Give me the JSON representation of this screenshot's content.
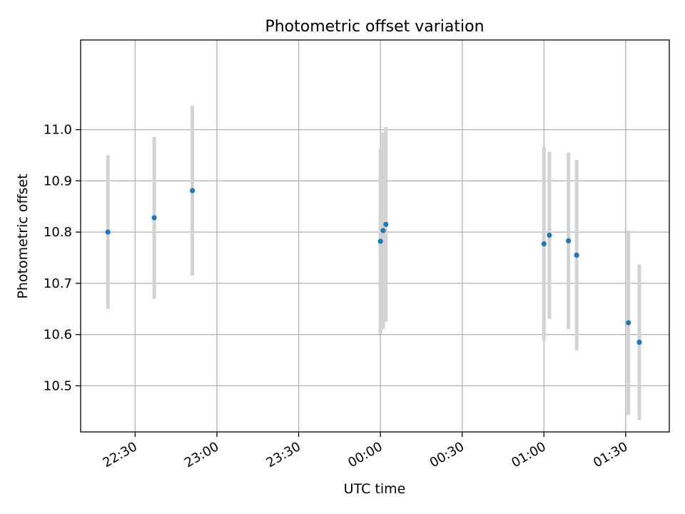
{
  "chart_data": {
    "type": "scatter",
    "title": "Photometric offset variation",
    "xlabel": "UTC time",
    "ylabel": "Photometric offset",
    "x_ticks": [
      "22:30",
      "23:00",
      "23:30",
      "00:00",
      "00:30",
      "01:00",
      "01:30"
    ],
    "y_ticks": [
      "10.5",
      "10.6",
      "10.7",
      "10.8",
      "10.9",
      "11.0"
    ],
    "xlim": [
      "22:10",
      "01:46"
    ],
    "ylim": [
      10.41,
      11.175
    ],
    "grid": true,
    "colors": {
      "point": "#1f77b4",
      "errorbar": "#d3d3d3",
      "grid": "#b0b0b0"
    },
    "points": [
      {
        "time": "22:20",
        "y": 10.8,
        "err": 0.15
      },
      {
        "time": "22:37",
        "y": 10.828,
        "err": 0.158
      },
      {
        "time": "22:51",
        "y": 10.881,
        "err": 0.166
      },
      {
        "time": "00:00",
        "y": 10.782,
        "err": 0.18
      },
      {
        "time": "00:01",
        "y": 10.803,
        "err": 0.192
      },
      {
        "time": "00:02",
        "y": 10.815,
        "err": 0.19
      },
      {
        "time": "01:00",
        "y": 10.777,
        "err": 0.19
      },
      {
        "time": "01:02",
        "y": 10.794,
        "err": 0.163
      },
      {
        "time": "01:09",
        "y": 10.783,
        "err": 0.172
      },
      {
        "time": "01:12",
        "y": 10.755,
        "err": 0.186
      },
      {
        "time": "01:31",
        "y": 10.623,
        "err": 0.18
      },
      {
        "time": "01:35",
        "y": 10.585,
        "err": 0.152
      }
    ]
  }
}
